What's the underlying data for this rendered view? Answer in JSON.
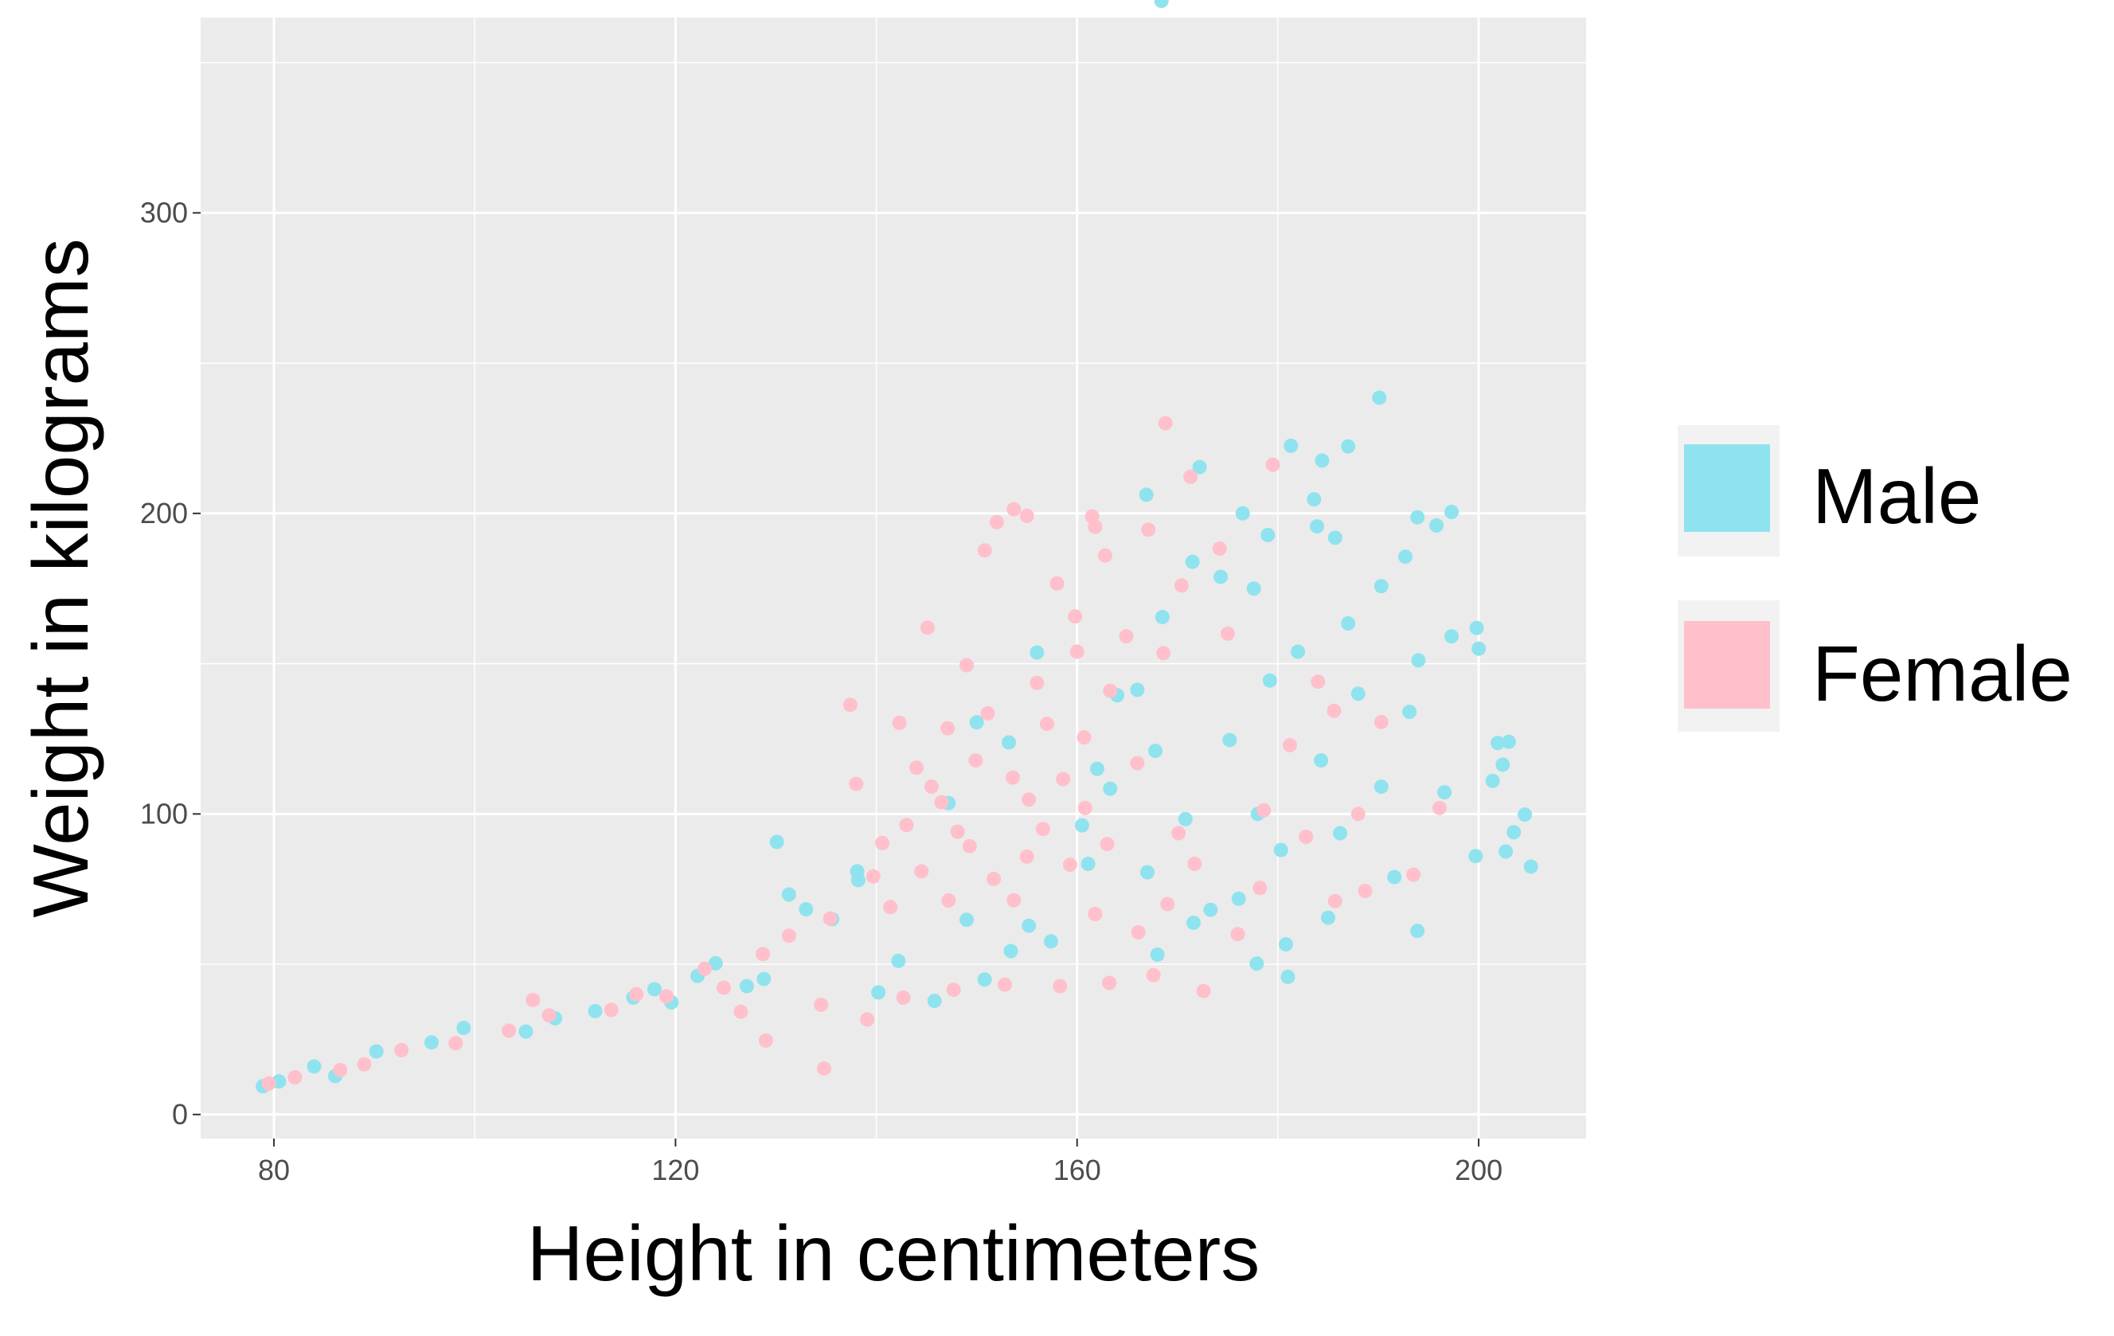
{
  "chart_data": {
    "type": "scatter",
    "xlabel": "Height in centimeters",
    "ylabel": "Weight in kilograms",
    "xlim": [
      72.7,
      210.7
    ],
    "ylim": [
      -8,
      365
    ],
    "x_ticks": [
      80,
      120,
      160,
      200
    ],
    "y_ticks": [
      0,
      100,
      200,
      300
    ],
    "x_tick_labels": [
      "80",
      "120",
      "160",
      "200"
    ],
    "y_tick_labels": [
      "0",
      "100",
      "200",
      "300"
    ],
    "grid": true,
    "panel_background": "#ebebeb",
    "legend_position": "right",
    "series": [
      {
        "name": "Male",
        "color": "#8fe3ee",
        "points": [
          [
            168.4,
            370.5
          ],
          [
            190.1,
            238.5
          ],
          [
            181.3,
            222.5
          ],
          [
            187.0,
            222.3
          ],
          [
            184.4,
            217.6
          ],
          [
            172.2,
            215.4
          ],
          [
            166.9,
            206.2
          ],
          [
            176.5,
            200.0
          ],
          [
            197.3,
            200.5
          ],
          [
            193.9,
            198.7
          ],
          [
            183.6,
            204.7
          ],
          [
            183.9,
            195.7
          ],
          [
            195.8,
            196.0
          ],
          [
            185.7,
            191.9
          ],
          [
            179.0,
            192.8
          ],
          [
            192.7,
            185.6
          ],
          [
            199.8,
            161.9
          ],
          [
            190.3,
            175.8
          ],
          [
            197.3,
            159.1
          ],
          [
            194.0,
            151.1
          ],
          [
            200.0,
            155.0
          ],
          [
            203.0,
            124.0
          ],
          [
            201.9,
            123.6
          ],
          [
            202.4,
            116.4
          ],
          [
            201.4,
            111.0
          ],
          [
            204.6,
            99.8
          ],
          [
            203.5,
            93.9
          ],
          [
            202.7,
            87.5
          ],
          [
            205.2,
            82.5
          ],
          [
            199.7,
            86.0
          ],
          [
            196.6,
            107.2
          ],
          [
            193.9,
            61.1
          ],
          [
            130.1,
            90.7
          ],
          [
            138.1,
            80.9
          ],
          [
            138.2,
            78.0
          ],
          [
            131.3,
            73.2
          ],
          [
            133.0,
            68.3
          ],
          [
            135.6,
            65.0
          ],
          [
            147.2,
            103.6
          ],
          [
            153.2,
            123.8
          ],
          [
            150.0,
            130.5
          ],
          [
            156.0,
            153.7
          ],
          [
            166.0,
            141.3
          ],
          [
            168.5,
            165.5
          ],
          [
            171.5,
            183.9
          ],
          [
            174.3,
            178.9
          ],
          [
            177.6,
            175.0
          ],
          [
            163.3,
            108.4
          ],
          [
            98.9,
            28.8
          ],
          [
            105.1,
            27.6
          ],
          [
            112.0,
            34.4
          ],
          [
            117.9,
            41.7
          ],
          [
            122.2,
            46.1
          ],
          [
            124.0,
            50.3
          ],
          [
            128.8,
            45.1
          ],
          [
            127.1,
            42.7
          ],
          [
            119.6,
            37.3
          ],
          [
            115.8,
            38.9
          ],
          [
            108.0,
            32.0
          ],
          [
            95.7,
            24.0
          ],
          [
            90.2,
            21.0
          ],
          [
            84.0,
            16.0
          ],
          [
            80.5,
            11.0
          ],
          [
            86.1,
            12.8
          ],
          [
            78.9,
            9.4
          ],
          [
            176.1,
            71.8
          ],
          [
            173.3,
            68.1
          ],
          [
            180.3,
            88.0
          ],
          [
            186.2,
            93.6
          ],
          [
            190.3,
            109.1
          ],
          [
            184.3,
            117.8
          ],
          [
            179.2,
            144.4
          ],
          [
            182.0,
            154.0
          ],
          [
            187.0,
            163.4
          ],
          [
            193.1,
            134.0
          ],
          [
            191.6,
            79.0
          ],
          [
            185.0,
            65.5
          ],
          [
            180.8,
            56.6
          ],
          [
            177.9,
            50.2
          ],
          [
            181.0,
            45.8
          ],
          [
            171.6,
            63.8
          ],
          [
            168.0,
            53.2
          ],
          [
            167.0,
            80.6
          ],
          [
            170.8,
            98.3
          ],
          [
            175.2,
            124.6
          ],
          [
            160.5,
            96.2
          ],
          [
            157.4,
            57.6
          ],
          [
            155.2,
            62.8
          ],
          [
            153.4,
            54.4
          ],
          [
            150.8,
            44.9
          ],
          [
            142.2,
            51.1
          ],
          [
            140.2,
            40.6
          ],
          [
            149.0,
            64.8
          ],
          [
            145.8,
            37.8
          ],
          [
            161.1,
            83.4
          ],
          [
            164.0,
            139.5
          ],
          [
            167.8,
            121.0
          ],
          [
            162.0,
            115.0
          ],
          [
            178.0,
            100.0
          ],
          [
            188.0,
            140.0
          ]
        ]
      },
      {
        "name": "Female",
        "color": "#ffc0cb",
        "points": [
          [
            168.8,
            230.0
          ],
          [
            179.5,
            216.2
          ],
          [
            171.3,
            212.2
          ],
          [
            153.7,
            201.4
          ],
          [
            155.0,
            199.2
          ],
          [
            152.0,
            197.1
          ],
          [
            161.5,
            199.0
          ],
          [
            167.1,
            194.6
          ],
          [
            150.8,
            187.7
          ],
          [
            162.8,
            186.0
          ],
          [
            158.0,
            176.7
          ],
          [
            145.1,
            162.0
          ],
          [
            160.0,
            154.0
          ],
          [
            156.0,
            143.6
          ],
          [
            137.4,
            136.3
          ],
          [
            142.3,
            130.3
          ],
          [
            147.1,
            128.5
          ],
          [
            151.1,
            133.5
          ],
          [
            144.0,
            115.4
          ],
          [
            149.9,
            117.8
          ],
          [
            145.5,
            109.1
          ],
          [
            153.6,
            112.1
          ],
          [
            158.6,
            111.6
          ],
          [
            146.5,
            103.9
          ],
          [
            155.2,
            104.8
          ],
          [
            160.8,
            102.0
          ],
          [
            143.0,
            96.3
          ],
          [
            140.6,
            90.3
          ],
          [
            148.1,
            94.1
          ],
          [
            156.6,
            95.0
          ],
          [
            149.3,
            89.3
          ],
          [
            155.0,
            85.8
          ],
          [
            139.7,
            79.2
          ],
          [
            144.5,
            80.9
          ],
          [
            151.7,
            78.4
          ],
          [
            159.3,
            83.1
          ],
          [
            163.0,
            90.0
          ],
          [
            153.7,
            71.3
          ],
          [
            147.2,
            71.2
          ],
          [
            141.4,
            69.0
          ],
          [
            135.4,
            65.2
          ],
          [
            131.3,
            59.5
          ],
          [
            128.7,
            53.4
          ],
          [
            122.9,
            48.5
          ],
          [
            124.8,
            42.2
          ],
          [
            119.1,
            39.3
          ],
          [
            116.1,
            40.0
          ],
          [
            113.6,
            34.8
          ],
          [
            107.4,
            33.0
          ],
          [
            105.8,
            38.1
          ],
          [
            103.4,
            27.9
          ],
          [
            98.1,
            23.7
          ],
          [
            92.7,
            21.4
          ],
          [
            89.0,
            16.7
          ],
          [
            86.6,
            14.8
          ],
          [
            82.1,
            12.4
          ],
          [
            79.5,
            10.3
          ],
          [
            134.8,
            15.3
          ],
          [
            134.5,
            36.5
          ],
          [
            129.0,
            24.6
          ],
          [
            126.5,
            34.2
          ],
          [
            139.1,
            31.6
          ],
          [
            142.7,
            38.9
          ],
          [
            147.7,
            41.5
          ],
          [
            152.8,
            43.2
          ],
          [
            158.3,
            42.7
          ],
          [
            163.2,
            43.8
          ],
          [
            167.6,
            46.4
          ],
          [
            172.6,
            41.1
          ],
          [
            166.1,
            60.6
          ],
          [
            161.8,
            66.7
          ],
          [
            178.2,
            75.4
          ],
          [
            185.7,
            71.0
          ],
          [
            178.6,
            101.2
          ],
          [
            181.2,
            122.9
          ],
          [
            185.6,
            134.3
          ],
          [
            190.3,
            130.6
          ],
          [
            196.1,
            102.0
          ],
          [
            193.5,
            79.8
          ],
          [
            188.7,
            74.4
          ],
          [
            182.8,
            92.4
          ],
          [
            171.7,
            83.4
          ],
          [
            170.1,
            93.6
          ],
          [
            166.0,
            116.9
          ],
          [
            160.7,
            125.5
          ],
          [
            157.0,
            130.0
          ],
          [
            163.3,
            141.0
          ],
          [
            168.6,
            153.5
          ],
          [
            164.9,
            159.1
          ],
          [
            170.4,
            176.0
          ],
          [
            174.2,
            188.3
          ],
          [
            161.8,
            195.6
          ],
          [
            159.8,
            165.7
          ],
          [
            149.0,
            149.5
          ],
          [
            138.0,
            110.0
          ],
          [
            176.0,
            60.0
          ],
          [
            188.0,
            100.0
          ],
          [
            184.0,
            144.0
          ],
          [
            175.0,
            160.0
          ],
          [
            169.0,
            70.0
          ]
        ]
      }
    ]
  }
}
